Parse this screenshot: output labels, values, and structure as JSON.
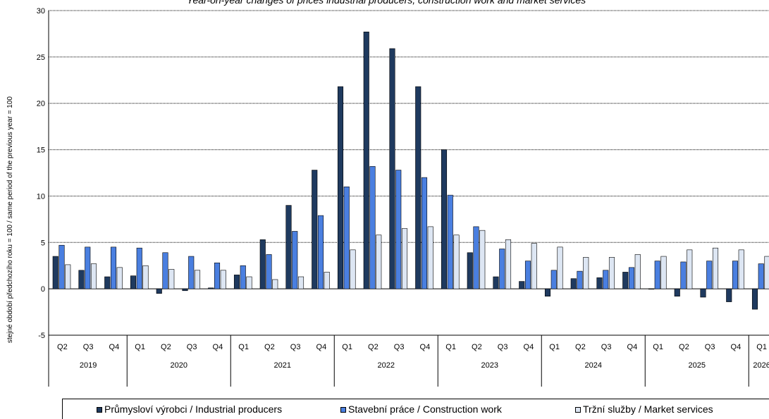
{
  "chart_data": {
    "type": "bar",
    "title": "Year-on-year changes of prices industrial producers, construction work and market services",
    "ylabel": "stejné období předchozího roku = 100 / same period of  the previous year = 100",
    "ylim": [
      -5,
      30
    ],
    "yticks": [
      -5,
      0,
      5,
      10,
      15,
      20,
      25,
      30
    ],
    "grid": true,
    "legend_position": "bottom",
    "categories": [
      "Q2",
      "Q3",
      "Q4",
      "Q1",
      "Q2",
      "Q3",
      "Q4",
      "Q1",
      "Q2",
      "Q3",
      "Q4",
      "Q1",
      "Q2",
      "Q3",
      "Q4",
      "Q1",
      "Q2",
      "Q3",
      "Q4",
      "Q1",
      "Q2",
      "Q3",
      "Q4",
      "Q1",
      "Q2",
      "Q3",
      "Q4",
      "Q1"
    ],
    "years": [
      {
        "label": "2019",
        "count": 3
      },
      {
        "label": "2020",
        "count": 4
      },
      {
        "label": "2021",
        "count": 4
      },
      {
        "label": "2022",
        "count": 4
      },
      {
        "label": "2023",
        "count": 4
      },
      {
        "label": "2024",
        "count": 4
      },
      {
        "label": "2025",
        "count": 4
      },
      {
        "label": "2026",
        "count": 1
      }
    ],
    "series": [
      {
        "name": "Průmysloví výrobci / Industrial producers",
        "color": "#1f3a5f",
        "values": [
          3.5,
          2.0,
          1.3,
          1.4,
          -0.5,
          -0.2,
          0.1,
          1.5,
          5.3,
          9.0,
          12.8,
          21.8,
          27.7,
          25.9,
          21.8,
          15.0,
          3.9,
          1.3,
          0.8,
          -0.8,
          1.1,
          1.2,
          1.8,
          0.0,
          -0.8,
          -0.9,
          -1.4,
          -2.2
        ]
      },
      {
        "name": "Stavební práce / Construction work",
        "color": "#4a7fe0",
        "values": [
          4.7,
          4.5,
          4.5,
          4.4,
          3.9,
          3.5,
          2.8,
          2.5,
          3.7,
          6.2,
          7.9,
          11.0,
          13.2,
          12.8,
          12.0,
          10.1,
          6.7,
          4.3,
          3.0,
          2.0,
          1.9,
          2.0,
          2.3,
          3.0,
          2.9,
          3.0,
          3.0,
          2.7
        ]
      },
      {
        "name": "Tržní služby / Market services",
        "color": "#dde6f3",
        "values": [
          2.6,
          2.7,
          2.3,
          2.5,
          2.1,
          2.0,
          2.0,
          1.3,
          1.0,
          1.3,
          1.8,
          4.2,
          5.8,
          6.5,
          6.7,
          5.8,
          6.3,
          5.3,
          4.9,
          4.5,
          3.4,
          3.4,
          3.7,
          3.5,
          4.2,
          4.4,
          4.2,
          3.5
        ]
      }
    ]
  }
}
